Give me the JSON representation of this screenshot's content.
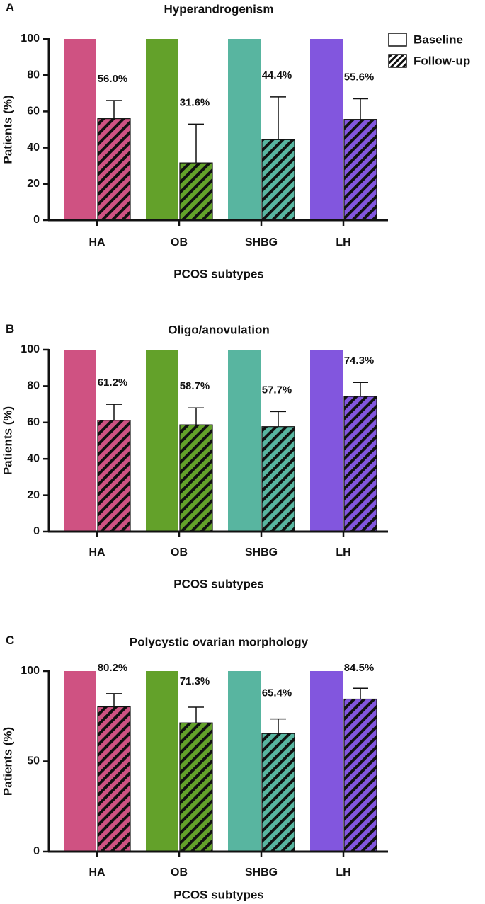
{
  "chart_data": [
    {
      "panel_letter": "A",
      "type": "bar",
      "title": "Hyperandrogenism",
      "xlabel": "PCOS subtypes",
      "ylabel": "Patients (%)",
      "ylim": [
        0,
        100
      ],
      "yticks": [
        0,
        20,
        40,
        60,
        80,
        100
      ],
      "categories": [
        "HA",
        "OB",
        "SHBG",
        "LH"
      ],
      "colors": [
        "#cf5282",
        "#63a12a",
        "#58b5a0",
        "#8256de"
      ],
      "series": [
        {
          "name": "Baseline",
          "pattern": "solid",
          "values": [
            100,
            100,
            100,
            100
          ]
        },
        {
          "name": "Follow-up",
          "pattern": "hatched",
          "values": [
            56.0,
            31.6,
            44.4,
            55.6
          ],
          "error_upper": [
            66,
            53,
            68,
            67
          ],
          "labels": [
            "56.0%",
            "31.6%",
            "44.4%",
            "55.6%"
          ]
        }
      ],
      "legend": {
        "position": "top-right",
        "entries": [
          "Baseline",
          "Follow-up"
        ]
      }
    },
    {
      "panel_letter": "B",
      "type": "bar",
      "title": "Oligo/anovulation",
      "xlabel": "PCOS subtypes",
      "ylabel": "Patients (%)",
      "ylim": [
        0,
        100
      ],
      "yticks": [
        0,
        20,
        40,
        60,
        80,
        100
      ],
      "categories": [
        "HA",
        "OB",
        "SHBG",
        "LH"
      ],
      "colors": [
        "#cf5282",
        "#63a12a",
        "#58b5a0",
        "#8256de"
      ],
      "series": [
        {
          "name": "Baseline",
          "pattern": "solid",
          "values": [
            100,
            100,
            100,
            100
          ]
        },
        {
          "name": "Follow-up",
          "pattern": "hatched",
          "values": [
            61.2,
            58.7,
            57.7,
            74.3
          ],
          "error_upper": [
            70,
            68,
            66,
            82
          ],
          "labels": [
            "61.2%",
            "58.7%",
            "57.7%",
            "74.3%"
          ]
        }
      ]
    },
    {
      "panel_letter": "C",
      "type": "bar",
      "title": "Polycystic ovarian morphology",
      "xlabel": "PCOS subtypes",
      "ylabel": "Patients (%)",
      "ylim": [
        0,
        100
      ],
      "yticks": [
        0,
        50,
        100
      ],
      "categories": [
        "HA",
        "OB",
        "SHBG",
        "LH"
      ],
      "colors": [
        "#cf5282",
        "#63a12a",
        "#58b5a0",
        "#8256de"
      ],
      "series": [
        {
          "name": "Baseline",
          "pattern": "solid",
          "values": [
            100,
            100,
            100,
            100
          ]
        },
        {
          "name": "Follow-up",
          "pattern": "hatched",
          "values": [
            80.2,
            71.3,
            65.4,
            84.5
          ],
          "error_upper": [
            87.5,
            80,
            73.5,
            90.5
          ],
          "labels": [
            "80.2%",
            "71.3%",
            "65.4%",
            "84.5%"
          ]
        }
      ]
    }
  ]
}
